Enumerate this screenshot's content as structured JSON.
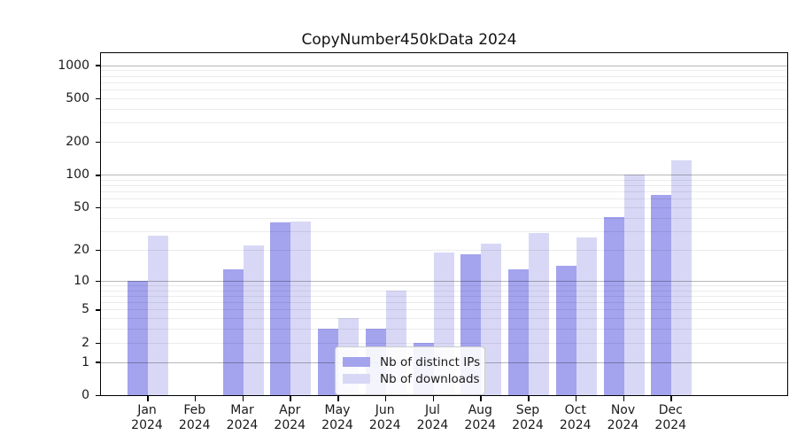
{
  "title": "CopyNumber450kData 2024",
  "colors": {
    "ips_bar": "#a3a3ee",
    "downloads_bar": "#d8d8f6",
    "axis": "#000000",
    "grid_major": "#b3b3b3",
    "grid_minor": "#e8e8e8",
    "text": "#1a1a1a"
  },
  "legend": {
    "items": [
      {
        "label": "Nb of distinct IPs",
        "series": "ips"
      },
      {
        "label": "Nb of downloads",
        "series": "downloads"
      }
    ]
  },
  "y_axis": {
    "tick_labels": [
      "1000",
      "500",
      "200",
      "100",
      "50",
      "20",
      "10",
      "5",
      "2",
      "1",
      "0"
    ],
    "tick_values": [
      1000,
      500,
      200,
      100,
      50,
      20,
      10,
      5,
      2,
      1,
      0
    ]
  },
  "chart_data": {
    "type": "bar",
    "title": "CopyNumber450kData 2024",
    "categories": [
      "Jan 2024",
      "Feb 2024",
      "Mar 2024",
      "Apr 2024",
      "May 2024",
      "Jun 2024",
      "Jul 2024",
      "Aug 2024",
      "Sep 2024",
      "Oct 2024",
      "Nov 2024",
      "Dec 2024"
    ],
    "series": [
      {
        "name": "Nb of distinct IPs",
        "color_key": "ips_bar",
        "values": [
          10,
          0,
          13,
          36,
          3,
          3,
          2,
          18,
          13,
          14,
          41,
          65
        ]
      },
      {
        "name": "Nb of downloads",
        "color_key": "downloads_bar",
        "values": [
          27,
          0,
          22,
          37,
          4,
          8,
          19,
          23,
          29,
          26,
          100,
          135
        ]
      }
    ],
    "yscale": "log10(value+1)",
    "y_ticks": [
      0,
      1,
      2,
      5,
      10,
      20,
      50,
      100,
      200,
      500,
      1000
    ],
    "ylim": [
      0,
      1280
    ],
    "xlabel": "",
    "ylabel": "",
    "grid": "horizontal",
    "legend_position": "inside-lower-center"
  }
}
